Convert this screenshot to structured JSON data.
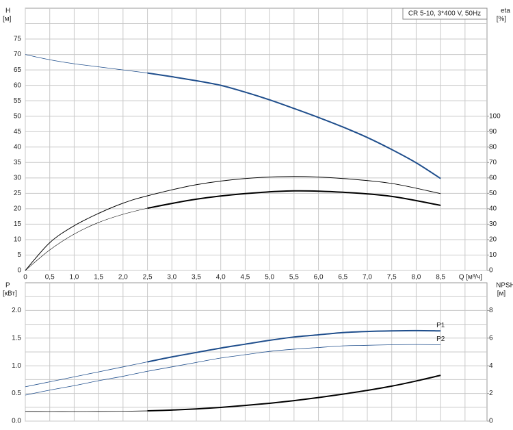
{
  "chart_data": [
    {
      "type": "line",
      "title": "CR 5-10, 3*400 V, 50Hz",
      "ylabel": "H",
      "yunit": "[м]",
      "y2label": "eta",
      "y2unit": "[%]",
      "xlabel": "Q [м³/ч]",
      "xlim": [
        0,
        9.45
      ],
      "ylim": [
        0,
        85
      ],
      "y2lim": [
        0,
        170
      ],
      "xticks": [
        0,
        {
          "value": 0.5,
          "label": "0,5"
        },
        {
          "value": 1,
          "label": "1,0"
        },
        {
          "value": 1.5,
          "label": "1,5"
        },
        {
          "value": 2,
          "label": "2,0"
        },
        {
          "value": 2.5,
          "label": "2,5"
        },
        {
          "value": 3,
          "label": "3,0"
        },
        {
          "value": 3.5,
          "label": "3,5"
        },
        {
          "value": 4,
          "label": "4,0"
        },
        {
          "value": 4.5,
          "label": "4,5"
        },
        {
          "value": 5,
          "label": "5,0"
        },
        {
          "value": 5.5,
          "label": "5,5"
        },
        {
          "value": 6,
          "label": "6,0"
        },
        {
          "value": 6.5,
          "label": "6,5"
        },
        {
          "value": 7,
          "label": "7,0"
        },
        {
          "value": 7.5,
          "label": "7,5"
        },
        {
          "value": 8,
          "label": "8,0"
        },
        {
          "value": 8.5,
          "label": "8,5"
        }
      ],
      "xminorticks": [
        9
      ],
      "yticks": [
        0,
        5,
        10,
        15,
        20,
        25,
        30,
        35,
        40,
        45,
        50,
        55,
        60,
        65,
        70,
        75
      ],
      "yminorticks": [
        80
      ],
      "y2ticks": [
        0,
        10,
        20,
        30,
        40,
        50,
        60,
        70,
        80,
        90,
        100
      ],
      "grid": true,
      "series": [
        {
          "color": "#1f4e8c",
          "width": 0.8,
          "x": [
            0,
            0.5,
            1,
            1.5,
            2,
            2.5
          ],
          "values": [
            70,
            68.3,
            67,
            66,
            65,
            64
          ]
        },
        {
          "color": "#1f4e8c",
          "width": 2,
          "x": [
            2.5,
            3,
            3.5,
            4,
            4.5,
            5,
            5.5,
            6,
            6.5,
            7,
            7.5,
            8,
            8.5
          ],
          "values": [
            64,
            62.8,
            61.5,
            60,
            57.8,
            55.3,
            52.5,
            49.6,
            46.5,
            43.1,
            39.2,
            34.9,
            29.8
          ]
        },
        {
          "color": "#000000",
          "width": 1,
          "axis": "y2",
          "x": [
            0,
            0.5,
            1,
            1.5,
            2,
            2.5,
            3.5,
            4.5,
            5.5,
            6.5,
            7.5,
            8.5
          ],
          "values": [
            0,
            18,
            29,
            37,
            43.6,
            48.4,
            55.6,
            59.6,
            60.9,
            59.6,
            56.4,
            49.8
          ]
        },
        {
          "color": "#000000",
          "width": 0.6,
          "axis": "y2",
          "x": [
            0,
            0.5,
            1,
            1.5,
            2,
            2.5
          ],
          "values": [
            0,
            13.3,
            23.6,
            31.1,
            36.4,
            40.4
          ]
        },
        {
          "color": "#000000",
          "width": 2,
          "axis": "y2",
          "x": [
            2.5,
            3.5,
            4.5,
            5.5,
            6.5,
            7.5,
            8.5
          ],
          "values": [
            40.4,
            46.2,
            49.8,
            51.6,
            50.7,
            48,
            42.2
          ]
        }
      ]
    },
    {
      "type": "line",
      "ylabel": "P",
      "yunit": "[кВт]",
      "y2label": "NPSH",
      "y2unit": "[м]",
      "xlim": [
        0,
        9.45
      ],
      "ylim": [
        0,
        2.5
      ],
      "y2lim": [
        0,
        10
      ],
      "yticks": [
        {
          "value": 0,
          "label": "0.0"
        },
        0.5,
        {
          "value": 1,
          "label": "1.0"
        },
        1.5,
        {
          "value": 2,
          "label": "2.0"
        }
      ],
      "yminorticks": [
        0.25,
        0.75,
        1.25,
        1.75,
        2.25
      ],
      "y2ticks": [
        0,
        2,
        4,
        6,
        8
      ],
      "grid": true,
      "series": [
        {
          "color": "#1f4e8c",
          "width": 0.8,
          "x": [
            0,
            0.5,
            1,
            1.5,
            2,
            2.5
          ],
          "values": [
            0.62,
            0.71,
            0.8,
            0.89,
            0.98,
            1.07
          ]
        },
        {
          "name": "P1",
          "color": "#1f4e8c",
          "width": 2,
          "x": [
            2.5,
            3,
            3.5,
            4,
            4.5,
            5,
            5.5,
            6,
            6.5,
            7,
            7.5,
            8,
            8.5
          ],
          "values": [
            1.07,
            1.16,
            1.24,
            1.32,
            1.39,
            1.46,
            1.52,
            1.56,
            1.6,
            1.62,
            1.63,
            1.635,
            1.63
          ]
        },
        {
          "name": "P2",
          "color": "#1f4e8c",
          "width": 0.8,
          "x": [
            0,
            0.5,
            1,
            1.5,
            2,
            2.5,
            3,
            3.5,
            4,
            4.5,
            5,
            5.5,
            6,
            6.5,
            7,
            7.5,
            8,
            8.5
          ],
          "values": [
            0.47,
            0.56,
            0.64,
            0.73,
            0.81,
            0.9,
            0.98,
            1.06,
            1.14,
            1.2,
            1.26,
            1.3,
            1.33,
            1.36,
            1.37,
            1.38,
            1.385,
            1.38
          ]
        },
        {
          "color": "#000000",
          "width": 0.8,
          "axis": "y2",
          "x": [
            0,
            0.5,
            1,
            1.5,
            2,
            2.5
          ],
          "values": [
            0.69,
            0.68,
            0.68,
            0.69,
            0.71,
            0.74
          ]
        },
        {
          "color": "#000000",
          "width": 2,
          "axis": "y2",
          "x": [
            2.5,
            3,
            3.5,
            4,
            4.5,
            5,
            5.5,
            6,
            6.5,
            7,
            7.5,
            8,
            8.5
          ],
          "values": [
            0.74,
            0.8,
            0.88,
            0.99,
            1.13,
            1.29,
            1.48,
            1.7,
            1.95,
            2.22,
            2.53,
            2.9,
            3.31
          ]
        }
      ]
    }
  ]
}
